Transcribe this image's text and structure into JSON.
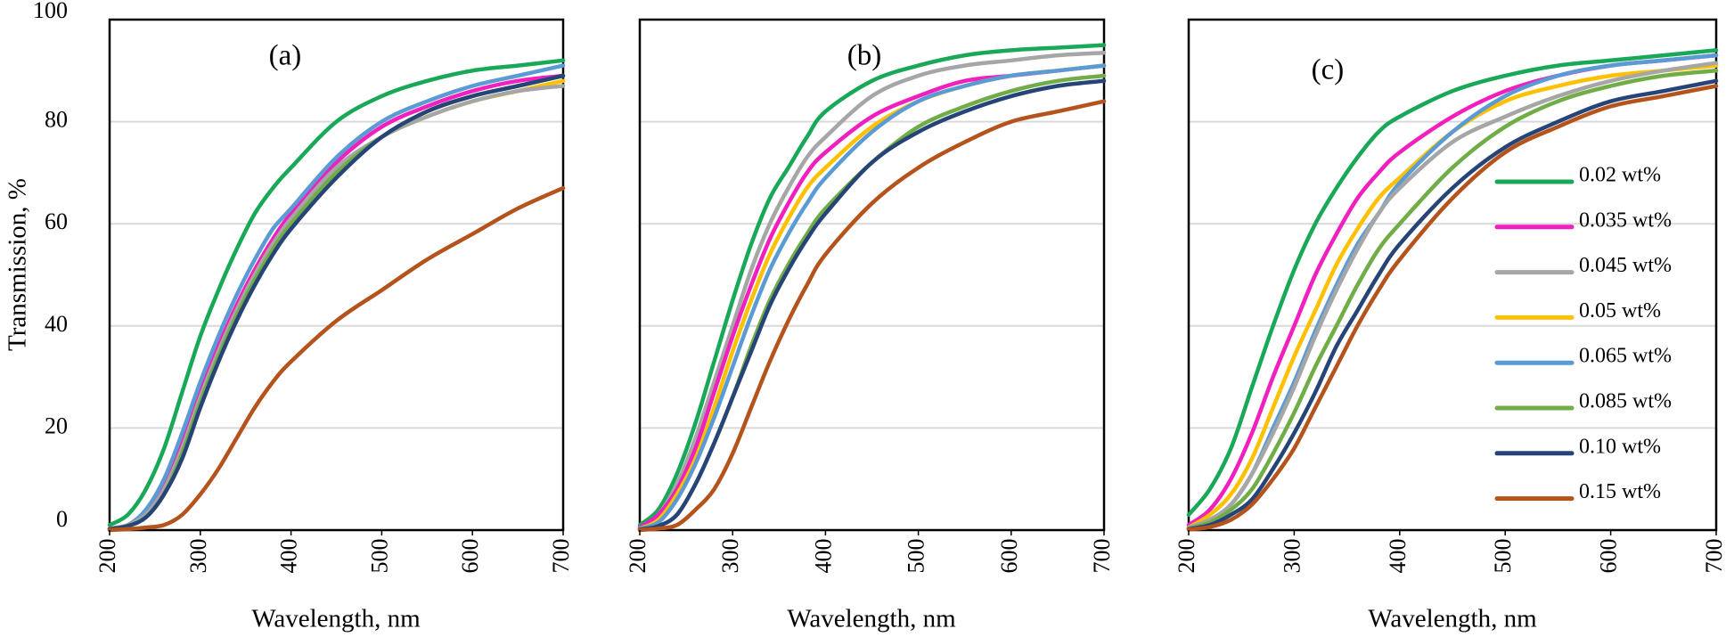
{
  "figure": {
    "ylabel": "Transmission, %",
    "xlabel": "Wavelength, nm"
  },
  "series_styles": [
    {
      "name": "0.02 wt%",
      "color": "#19A858"
    },
    {
      "name": "0.035 wt%",
      "color": "#F01FBE"
    },
    {
      "name": "0.045 wt%",
      "color": "#A6A6A6"
    },
    {
      "name": "0.05 wt%",
      "color": "#FFC000"
    },
    {
      "name": "0.065 wt%",
      "color": "#5B9BD5"
    },
    {
      "name": "0.085 wt%",
      "color": "#70AD47"
    },
    {
      "name": "0.10 wt%",
      "color": "#264478"
    },
    {
      "name": "0.15 wt%",
      "color": "#B5531D"
    }
  ],
  "legend": {
    "entries": [
      "0.02 wt%",
      "0.035 wt%",
      "0.045 wt%",
      "0.05 wt%",
      "0.065 wt%",
      "0.085 wt%",
      "0.10 wt%",
      "0.15 wt%"
    ],
    "placement": "right"
  },
  "chart_data": [
    {
      "type": "line",
      "title": "(a)",
      "xlabel": "Wavelength, nm",
      "ylabel": "Transmission, %",
      "x": [
        200,
        220,
        240,
        260,
        280,
        300,
        320,
        340,
        360,
        380,
        400,
        450,
        500,
        550,
        600,
        650,
        700
      ],
      "xlim": [
        200,
        700
      ],
      "ylim": [
        0,
        100
      ],
      "xticks": [
        200,
        300,
        400,
        500,
        600,
        700
      ],
      "yticks": [
        0,
        20,
        40,
        60,
        80,
        100
      ],
      "grid": "horizontal",
      "series": [
        {
          "name": "0.02 wt%",
          "values": [
            1,
            3,
            8,
            16,
            27,
            38,
            47,
            55,
            62,
            67,
            71,
            80,
            85,
            88,
            90,
            91,
            92
          ]
        },
        {
          "name": "0.035 wt%",
          "values": [
            0.3,
            1,
            3,
            9,
            17,
            27,
            36,
            44,
            51,
            57,
            62,
            72,
            79,
            83,
            86,
            88,
            89
          ]
        },
        {
          "name": "0.065 wt%",
          "values": [
            0.3,
            1,
            4,
            10,
            19,
            29,
            38,
            46,
            53,
            59,
            63,
            73,
            80,
            84,
            87,
            89,
            91
          ]
        },
        {
          "name": "0.05 wt%",
          "values": [
            0.2,
            1,
            3,
            8,
            16,
            26,
            35,
            43,
            50,
            56,
            60,
            70,
            77,
            81,
            84,
            86,
            88
          ]
        },
        {
          "name": "0.045 wt%",
          "values": [
            0.2,
            1,
            3,
            8,
            16,
            26,
            35,
            43,
            50,
            56,
            61,
            71,
            77,
            81,
            84,
            86,
            87
          ]
        },
        {
          "name": "0.085 wt%",
          "values": [
            0.2,
            0.8,
            2.5,
            7,
            15,
            25,
            34,
            42,
            49,
            55,
            60,
            70,
            77,
            82,
            85,
            87,
            89
          ]
        },
        {
          "name": "0.10 wt%",
          "values": [
            0.2,
            0.8,
            2.5,
            7,
            14,
            24,
            33,
            41,
            48,
            54,
            59,
            69,
            77,
            82,
            85,
            87,
            89
          ]
        },
        {
          "name": "0.15 wt%",
          "values": [
            0,
            0.2,
            0.5,
            1,
            3,
            7,
            12,
            18,
            24,
            29,
            33,
            41,
            47,
            53,
            58,
            63,
            67
          ]
        }
      ]
    },
    {
      "type": "line",
      "title": "(b)",
      "xlabel": "Wavelength, nm",
      "x": [
        200,
        220,
        240,
        260,
        280,
        300,
        320,
        340,
        360,
        380,
        400,
        450,
        500,
        550,
        600,
        650,
        700
      ],
      "xlim": [
        200,
        700
      ],
      "ylim": [
        0,
        100
      ],
      "xticks": [
        200,
        300,
        400,
        500,
        600,
        700
      ],
      "yticks": [
        0,
        20,
        40,
        60,
        80,
        100
      ],
      "grid": "horizontal",
      "series": [
        {
          "name": "0.02 wt%",
          "values": [
            1,
            4,
            11,
            21,
            33,
            45,
            56,
            65,
            71,
            77,
            82,
            88,
            91,
            93,
            94,
            94.5,
            95
          ]
        },
        {
          "name": "0.045 wt%",
          "values": [
            0.5,
            3,
            9,
            18,
            29,
            40,
            51,
            60,
            67,
            73,
            77,
            85,
            89,
            91,
            92,
            93,
            93.5
          ]
        },
        {
          "name": "0.035 wt%",
          "values": [
            0.5,
            3,
            8,
            16,
            27,
            38,
            48,
            57,
            64,
            70,
            74,
            81,
            85,
            88,
            89,
            90,
            91
          ]
        },
        {
          "name": "0.05 wt%",
          "values": [
            0.3,
            2,
            7,
            14,
            24,
            35,
            45,
            54,
            61,
            67,
            71,
            79,
            84,
            87,
            89,
            90,
            91
          ]
        },
        {
          "name": "0.065 wt%",
          "values": [
            0.3,
            1.5,
            6,
            13,
            22,
            32,
            42,
            51,
            58,
            64,
            69,
            78,
            84,
            87,
            89,
            90,
            91
          ]
        },
        {
          "name": "0.085 wt%",
          "values": [
            0.1,
            0.8,
            3,
            9,
            17,
            26,
            36,
            45,
            52,
            58,
            63,
            72,
            79,
            83,
            86,
            88,
            89
          ]
        },
        {
          "name": "0.10 wt%",
          "values": [
            0.1,
            0.8,
            3,
            9,
            17,
            26,
            35,
            44,
            51,
            57,
            62,
            72,
            78,
            82,
            85,
            87,
            88
          ]
        },
        {
          "name": "0.15 wt%",
          "values": [
            0,
            0.3,
            1,
            4,
            8,
            15,
            24,
            33,
            41,
            48,
            54,
            64,
            71,
            76,
            80,
            82,
            84
          ]
        }
      ]
    },
    {
      "type": "line",
      "title": "(c)",
      "xlabel": "Wavelength, nm",
      "x": [
        200,
        220,
        240,
        260,
        280,
        300,
        320,
        340,
        360,
        380,
        400,
        450,
        500,
        550,
        600,
        650,
        700
      ],
      "xlim": [
        200,
        700
      ],
      "ylim": [
        0,
        100
      ],
      "xticks": [
        200,
        300,
        400,
        500,
        600,
        700
      ],
      "yticks": [
        0,
        20,
        40,
        60,
        80,
        100
      ],
      "grid": "horizontal",
      "series": [
        {
          "name": "0.02 wt%",
          "values": [
            3,
            8,
            16,
            28,
            40,
            51,
            60,
            67,
            73,
            78,
            81,
            86,
            89,
            91,
            92,
            93,
            94
          ]
        },
        {
          "name": "0.035 wt%",
          "values": [
            1,
            4,
            10,
            19,
            30,
            40,
            50,
            58,
            65,
            70,
            74,
            81,
            86,
            89,
            91,
            92,
            93
          ]
        },
        {
          "name": "0.05 wt%",
          "values": [
            0.5,
            3,
            7,
            14,
            24,
            34,
            43,
            52,
            59,
            65,
            69,
            78,
            84,
            87,
            89,
            90,
            91
          ]
        },
        {
          "name": "0.065 wt%",
          "values": [
            0.5,
            2,
            5,
            11,
            20,
            29,
            39,
            48,
            56,
            62,
            68,
            78,
            85,
            89,
            91,
            92,
            93
          ]
        },
        {
          "name": "0.045 wt%",
          "values": [
            0.5,
            2,
            5,
            11,
            19,
            28,
            38,
            47,
            55,
            62,
            67,
            76,
            81,
            85,
            88,
            90,
            91.5
          ]
        },
        {
          "name": "0.085 wt%",
          "values": [
            0.3,
            1.5,
            4,
            8,
            15,
            23,
            32,
            40,
            48,
            55,
            60,
            71,
            79,
            84,
            87,
            89,
            90
          ]
        },
        {
          "name": "0.10 wt%",
          "values": [
            0.2,
            1,
            3,
            6,
            12,
            19,
            27,
            36,
            43,
            50,
            56,
            67,
            75,
            80,
            84,
            86,
            88
          ]
        },
        {
          "name": "0.15 wt%",
          "values": [
            0.1,
            0.6,
            2,
            5,
            10,
            16,
            24,
            32,
            40,
            47,
            53,
            65,
            74,
            79,
            83,
            85,
            87
          ]
        }
      ]
    }
  ]
}
